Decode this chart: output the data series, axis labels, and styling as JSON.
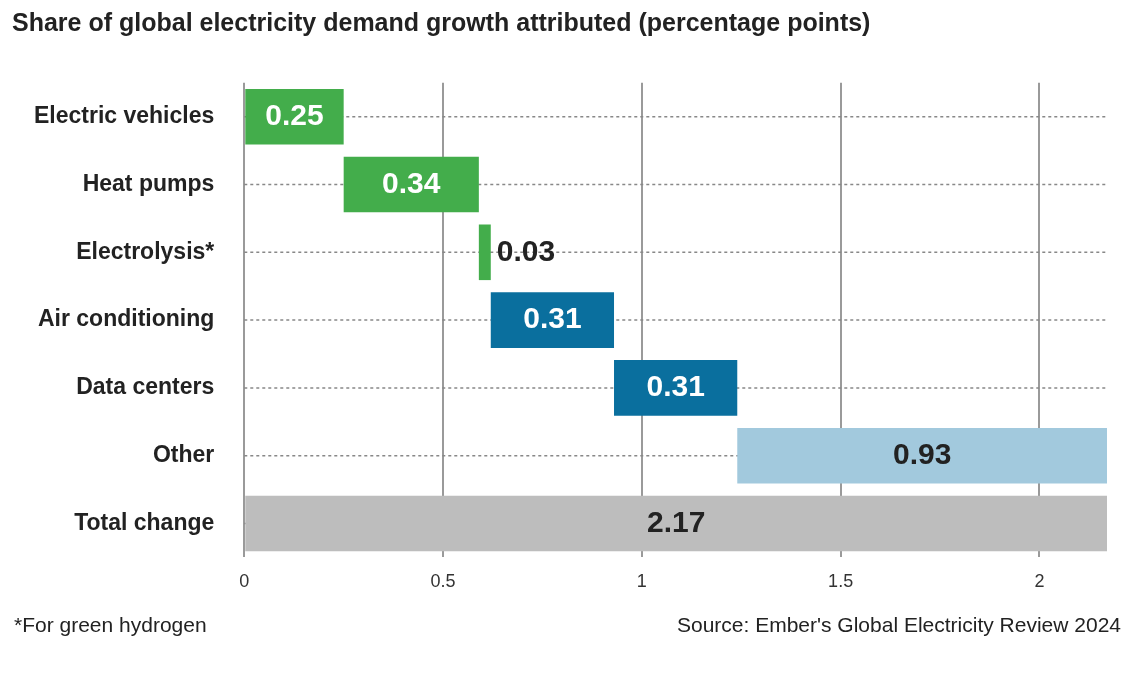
{
  "chart_data": {
    "type": "bar",
    "orientation": "horizontal",
    "title": "Share of global electricity demand growth attributed (percentage points)",
    "categories": [
      "Electric vehicles",
      "Heat pumps",
      "Electrolysis*",
      "Air conditioning",
      "Data centers",
      "Other",
      "Total change"
    ],
    "values": [
      0.25,
      0.34,
      0.03,
      0.31,
      0.31,
      0.93,
      2.17
    ],
    "base": [
      0,
      0.25,
      0.59,
      0.62,
      0.93,
      1.24,
      0
    ],
    "colors": [
      "#43ad4b",
      "#43ad4b",
      "#43ad4b",
      "#0a6f9e",
      "#0a6f9e",
      "#a2c9dd",
      "#bdbdbd"
    ],
    "xlim": [
      0,
      2.17
    ],
    "xticks": [
      0,
      0.5,
      1,
      1.5,
      2
    ],
    "grid": true,
    "data_labels": true,
    "annotations": [
      "*For green hydrogen",
      "Source: Ember's Global Electricity Review 2024"
    ]
  }
}
